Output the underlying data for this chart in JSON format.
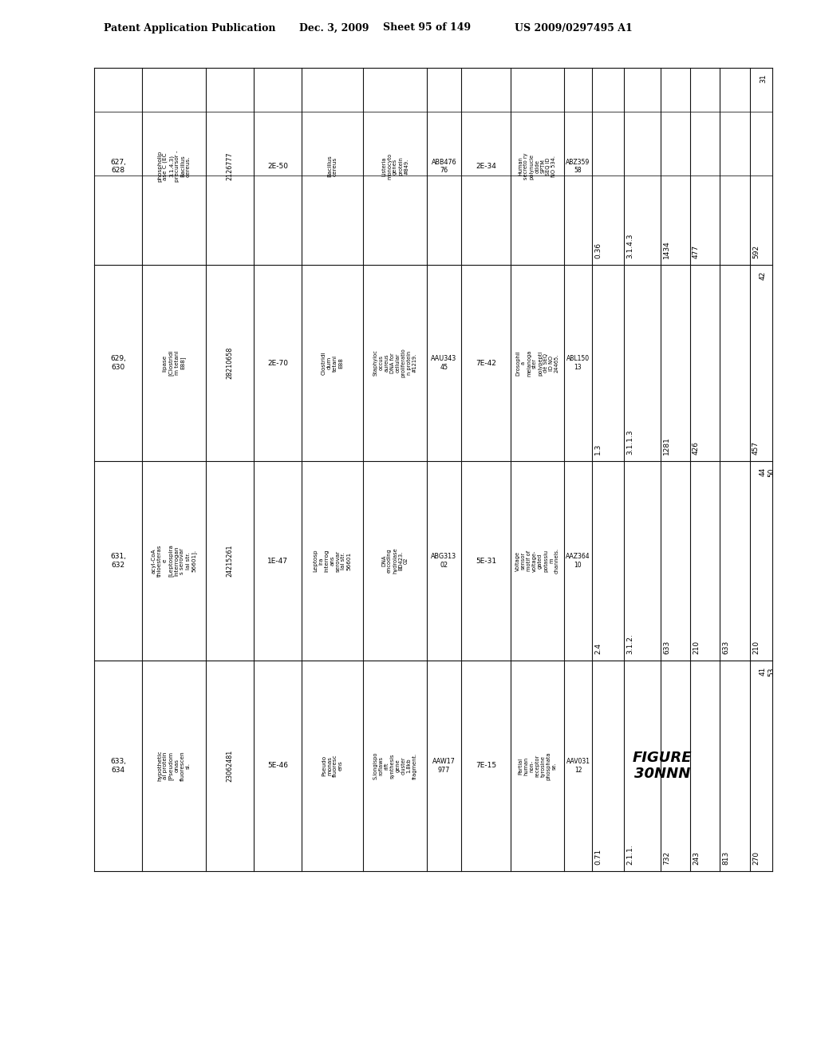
{
  "header_line1": "Patent Application Publication",
  "header_line2": "Dec. 3, 2009",
  "header_line3": "Sheet 95 of 149",
  "header_line4": "US 2009/0297495 A1",
  "figure_label": "FIGURE\n30NNN",
  "background_color": "#ffffff",
  "table": {
    "rows": [
      {
        "row_nums": "627,\n628",
        "col1": "phospholip\nase C (EC\n3.1.4.3)\nprecursor -\nBacillus\ncereus.",
        "col2": "2126777",
        "col3": "2E-50",
        "col4": "Bacillus\ncereus",
        "col5": "Listeria\nmonocyto\ngenes\nprotein\n#849.",
        "col6": "ABB476\n76",
        "col7": "2E-34",
        "col8": "Human\nsecreto ry\npolynucle\notide\nSPTM\nSEQ ID\nNO 534.",
        "col9": "ABZ359\n58",
        "col10": "0.36",
        "col11": "3.1.4.3",
        "col12": "1434",
        "col13": "477",
        "col14": "",
        "col15": "592",
        "col16": "31",
        "col17": ""
      },
      {
        "row_nums": "629,\n630",
        "col1": "lipase\n[Clostridi\nm tetani\nE88]",
        "col2": "28210658",
        "col3": "2E-70",
        "col4": "Clostridi\ndum\ntetani\nE88",
        "col5": "Staphyloc\noccus\naureus\nDNA for\ncellular\nproliferatio\nn protein\n#1219.",
        "col6": "AAU343\n45",
        "col7": "7E-42",
        "col8": "Drosophil\na\nmelanoga\nster\npolypepti\nde SEQ\nID NO\n24465.",
        "col9": "ABL150\n13",
        "col10": "1.3",
        "col11": "3.1.1.3",
        "col12": "1281",
        "col13": "426",
        "col14": "",
        "col15": "457",
        "col16": "42",
        "col17": ""
      },
      {
        "row_nums": "631,\n632",
        "col1": "acyl-CoA\nthioesteras\ne\n[Leptospira\ninterrogan\ns serovar\nlai str.\n56601].",
        "col2": "24215261",
        "col3": "1E-47",
        "col4": "Leptosp\nira\ninterrog\nans\nserovar\nlai str.\n56601",
        "col5": "DNA\nencoding\nhydrolase\nBD423.\n02",
        "col6": "ABG313\n02",
        "col7": "5E-31",
        "col8": "Voltage\nsensor\nmotif of\nvoltage-\ngated\npotassiu\nm\nchannels.",
        "col9": "AAZ364\n10",
        "col10": "2.4",
        "col11": "3.1.2.",
        "col12": "633",
        "col13": "210",
        "col14": "633",
        "col15": "210",
        "col16": "44",
        "col17": "50"
      },
      {
        "row_nums": "633,\n634",
        "col1": "hypothetic\nal protein\n[Pseudom\nonas\nfluorescen\nsi.",
        "col2": "23062481",
        "col3": "5E-46",
        "col4": "Pseudo\nmonas\nfluoresc\nens",
        "col5": "S.longispo\nroflaws\nrift\nsynthesis\ngene\ncluster\n1.8kb\nfragment.",
        "col6": "AAW17\n977",
        "col7": "7E-15",
        "col8": "Partial\nhuman\nnon-\nreceptor\ntyrosine\nphosphata\nse.",
        "col9": "AAV031\n12",
        "col10": "0.71",
        "col11": "2.1.1.",
        "col12": "732",
        "col13": "243",
        "col14": "813",
        "col15": "270",
        "col16": "41",
        "col17": "53"
      }
    ]
  }
}
